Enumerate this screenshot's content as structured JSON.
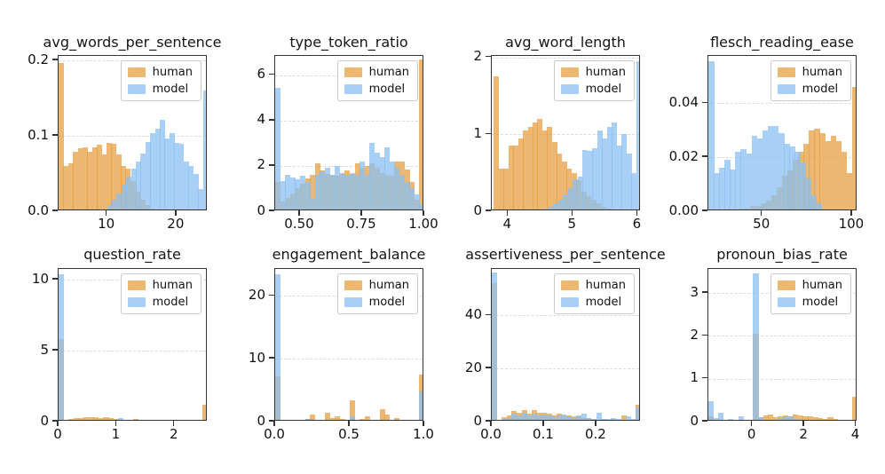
{
  "legend": {
    "human_label": "human",
    "model_label": "model"
  },
  "colors": {
    "human": "#e69f41",
    "model": "#8bbff1",
    "bar_alpha": 0.75,
    "human_rendered": "#ecb771",
    "model_rendered": "#a8cff5",
    "overlap_rendered": "#a3bdd1",
    "spine": "#333333",
    "grid": "#dcdcdc"
  },
  "chart_data": [
    {
      "type": "histogram",
      "title": "avg_words_per_sentence",
      "xlim": [
        3.0,
        24.5
      ],
      "ylim": [
        0,
        0.206
      ],
      "xticks": [
        10,
        20
      ],
      "xtick_labels": [
        "10",
        "20"
      ],
      "yticks": [
        0.0,
        0.1,
        0.2
      ],
      "ytick_labels": [
        "0.0",
        "0.1",
        "0.2"
      ],
      "grid": "horizontal-dashed",
      "legend_position": "upper-right",
      "series": [
        {
          "name": "human",
          "bin_start": 3.0,
          "bin_width": 0.69,
          "heights": [
            0.196,
            0.06,
            0.064,
            0.079,
            0.083,
            0.085,
            0.079,
            0.085,
            0.088,
            0.075,
            0.091,
            0.09,
            0.075,
            0.06,
            0.057,
            0.04,
            0.026,
            0.015,
            0.008,
            0.004
          ]
        },
        {
          "name": "model",
          "bin_start": 10.0,
          "bin_width": 0.69,
          "heights": [
            0.008,
            0.015,
            0.024,
            0.035,
            0.046,
            0.056,
            0.066,
            0.077,
            0.092,
            0.104,
            0.11,
            0.121,
            0.096,
            0.104,
            0.091,
            0.089,
            0.066,
            0.06,
            0.049,
            0.03,
            0.16
          ]
        }
      ]
    },
    {
      "type": "histogram",
      "title": "type_token_ratio",
      "xlim": [
        0.4,
        1.0
      ],
      "ylim": [
        0,
        6.85
      ],
      "xticks": [
        0.5,
        0.75,
        1.0
      ],
      "xtick_labels": [
        "0.50",
        "0.75",
        "1.00"
      ],
      "yticks": [
        0,
        2,
        4,
        6
      ],
      "ytick_labels": [
        "0",
        "2",
        "4",
        "6"
      ],
      "grid": "horizontal-dashed",
      "legend_position": "upper-right",
      "series": [
        {
          "name": "human",
          "bin_start": 0.4,
          "bin_width": 0.02,
          "heights": [
            1.3,
            0.45,
            0.6,
            0.8,
            1.0,
            1.2,
            1.45,
            1.6,
            2.1,
            1.8,
            1.65,
            1.6,
            1.55,
            1.7,
            1.8,
            1.65,
            2.1,
            1.9,
            2.0,
            2.1,
            1.9,
            1.7,
            1.6,
            1.55,
            2.2,
            2.2,
            1.85,
            1.3,
            0.5,
            6.7
          ]
        },
        {
          "name": "model",
          "bin_start": 0.4,
          "bin_width": 0.02,
          "heights": [
            5.45,
            1.35,
            1.6,
            1.5,
            1.4,
            1.55,
            1.3,
            0.55,
            1.6,
            1.75,
            1.9,
            1.6,
            2.0,
            1.65,
            1.6,
            1.7,
            1.6,
            2.2,
            1.6,
            3.0,
            2.6,
            2.4,
            2.8,
            2.2,
            1.9,
            1.6,
            1.3,
            1.0,
            0.75,
            0.3
          ]
        }
      ]
    },
    {
      "type": "histogram",
      "title": "avg_word_length",
      "xlim": [
        3.75,
        6.05
      ],
      "ylim": [
        0,
        2.02
      ],
      "xticks": [
        4,
        5,
        6
      ],
      "xtick_labels": [
        "4",
        "5",
        "6"
      ],
      "yticks": [
        0,
        1,
        2
      ],
      "ytick_labels": [
        "0",
        "1",
        "2"
      ],
      "grid": "horizontal-dashed",
      "legend_position": "upper-right",
      "series": [
        {
          "name": "human",
          "bin_start": 3.78,
          "bin_width": 0.075,
          "heights": [
            1.75,
            0.55,
            0.55,
            0.85,
            0.85,
            0.95,
            1.05,
            1.1,
            1.15,
            1.2,
            1.05,
            1.1,
            0.9,
            0.75,
            0.65,
            0.55,
            0.5,
            0.4,
            0.25,
            0.2,
            0.15,
            0.1,
            0.06,
            0.04,
            0.02
          ]
        },
        {
          "name": "model",
          "bin_start": 4.55,
          "bin_width": 0.075,
          "heights": [
            0.03,
            0.06,
            0.1,
            0.15,
            0.22,
            0.3,
            0.42,
            0.45,
            0.8,
            0.78,
            0.82,
            1.05,
            0.95,
            1.1,
            1.15,
            0.85,
            1.0,
            0.75,
            0.5,
            1.95
          ]
        }
      ]
    },
    {
      "type": "histogram",
      "title": "flesch_reading_ease",
      "xlim": [
        20,
        103
      ],
      "ylim": [
        0,
        0.0575
      ],
      "xticks": [
        50,
        100
      ],
      "xtick_labels": [
        "50",
        "100"
      ],
      "yticks": [
        0.0,
        0.02,
        0.04
      ],
      "ytick_labels": [
        "0.00",
        "0.02",
        "0.04"
      ],
      "grid": "horizontal-dashed",
      "legend_position": "upper-right",
      "series": [
        {
          "name": "human",
          "bin_start": 37,
          "bin_width": 3,
          "heights": [
            0.001,
            0.001,
            0.002,
            0.002,
            0.003,
            0.004,
            0.006,
            0.009,
            0.013,
            0.015,
            0.019,
            0.022,
            0.025,
            0.03,
            0.0305,
            0.029,
            0.026,
            0.028,
            0.026,
            0.022,
            0.014,
            0.046
          ]
        },
        {
          "name": "model",
          "bin_start": 20,
          "bin_width": 3,
          "heights": [
            0.0555,
            0.014,
            0.016,
            0.019,
            0.0155,
            0.022,
            0.023,
            0.0215,
            0.028,
            0.027,
            0.03,
            0.0315,
            0.0315,
            0.029,
            0.025,
            0.024,
            0.022,
            0.018,
            0.012,
            0.006,
            0.003
          ]
        }
      ]
    },
    {
      "type": "histogram",
      "title": "question_rate",
      "xlim": [
        0,
        2.57
      ],
      "ylim": [
        0,
        10.75
      ],
      "xticks": [
        0,
        1,
        2
      ],
      "xtick_labels": [
        "0",
        "1",
        "2"
      ],
      "yticks": [
        0,
        5,
        10
      ],
      "ytick_labels": [
        "0",
        "5",
        "10"
      ],
      "grid": "horizontal-dashed",
      "legend_position": "upper-right",
      "series": [
        {
          "name": "human",
          "bin_start": 0,
          "bin_width": 0.0857,
          "heights": [
            5.8,
            0.1,
            0.2,
            0.22,
            0.28,
            0.3,
            0.33,
            0.3,
            0.28,
            0.3,
            0.25,
            0.2,
            0.15,
            0.12,
            0.15,
            0.17,
            0.15,
            0.1,
            0.05,
            0.08,
            0.1,
            0.08,
            0.05,
            0.05,
            0.04,
            0.03,
            0.03,
            0.02,
            0.02,
            1.2
          ]
        },
        {
          "name": "model",
          "bin_start": 0,
          "bin_width": 0.0857,
          "heights": [
            10.4,
            0.05,
            0.04,
            0.03,
            0.05,
            0.04,
            0.05,
            0.04,
            0.03,
            0.04,
            0.03,
            0.04,
            0.25,
            0.08,
            0.05,
            0.04,
            0.03,
            0.03,
            0.02,
            0.03,
            0.02,
            0.02,
            0.02,
            0.02,
            0.02,
            0.02,
            0.08,
            0.02,
            0.02,
            0.05
          ]
        }
      ]
    },
    {
      "type": "histogram",
      "title": "engagement_balance",
      "xlim": [
        0,
        1.0
      ],
      "ylim": [
        0,
        24.3
      ],
      "xticks": [
        0.0,
        0.5,
        1.0
      ],
      "xtick_labels": [
        "0.0",
        "0.5",
        "1.0"
      ],
      "yticks": [
        0,
        10,
        20
      ],
      "ytick_labels": [
        "0",
        "10",
        "20"
      ],
      "grid": "horizontal-dashed",
      "legend_position": "upper-right",
      "series": [
        {
          "name": "human",
          "bin_start": 0,
          "bin_width": 0.03333,
          "heights": [
            7.2,
            0,
            0,
            0.1,
            0.15,
            0.3,
            0.4,
            1.1,
            0.3,
            0.2,
            1.35,
            0.5,
            0.85,
            0.45,
            0.1,
            3.4,
            0.2,
            0.45,
            0.9,
            0.3,
            0.25,
            2.0,
            1.1,
            0.3,
            0.6,
            0.35,
            0.2,
            0.1,
            0.05,
            7.5
          ]
        },
        {
          "name": "model",
          "bin_start": 0,
          "bin_width": 0.03333,
          "heights": [
            23.5,
            0,
            0,
            0,
            0,
            0,
            0.45,
            0.1,
            0,
            0,
            0.05,
            0,
            0.05,
            0,
            0,
            0.8,
            0,
            0,
            0.05,
            0,
            0,
            0.05,
            0,
            0,
            0,
            0,
            0,
            0,
            0,
            4.8
          ]
        }
      ]
    },
    {
      "type": "histogram",
      "title": "assertiveness_per_sentence",
      "xlim": [
        0,
        0.285
      ],
      "ylim": [
        0,
        57.5
      ],
      "xticks": [
        0.0,
        0.1,
        0.2
      ],
      "xtick_labels": [
        "0.0",
        "0.1",
        "0.2"
      ],
      "yticks": [
        0,
        20,
        40
      ],
      "ytick_labels": [
        "0",
        "20",
        "40"
      ],
      "grid": "horizontal-dashed",
      "legend_position": "upper-right",
      "series": [
        {
          "name": "human",
          "bin_start": 0,
          "bin_width": 0.0095,
          "heights": [
            52,
            0.5,
            1.8,
            2.2,
            4.0,
            3.5,
            4.2,
            3.0,
            4.2,
            3.2,
            3.5,
            3.0,
            2.5,
            3.0,
            2.5,
            2.2,
            2.0,
            2.0,
            1.5,
            1.5,
            1.0,
            0.8,
            1.0,
            0.8,
            1.0,
            0.8,
            2.2,
            0.8,
            0.5,
            6.2
          ]
        },
        {
          "name": "model",
          "bin_start": 0,
          "bin_width": 0.0095,
          "heights": [
            56,
            0.3,
            1.0,
            1.5,
            3.0,
            2.5,
            3.5,
            2.5,
            3.0,
            2.5,
            2.8,
            2.5,
            2.0,
            2.8,
            2.8,
            2.0,
            1.5,
            2.5,
            3.0,
            1.5,
            1.0,
            3.2,
            1.0,
            1.0,
            1.2,
            1.0,
            0.8,
            2.0,
            1.0,
            5.5
          ]
        }
      ]
    },
    {
      "type": "histogram",
      "title": "pronoun_bias_rate",
      "xlim": [
        -1.7,
        4.05
      ],
      "ylim": [
        0,
        3.56
      ],
      "xticks": [
        0,
        2,
        4
      ],
      "xtick_labels": [
        "0",
        "2",
        "4"
      ],
      "yticks": [
        0,
        1,
        2,
        3
      ],
      "ytick_labels": [
        "0",
        "1",
        "2",
        "3"
      ],
      "grid": "horizontal-dashed",
      "legend_position": "upper-right",
      "series": [
        {
          "name": "human",
          "bin_start": -1.7,
          "bin_width": 0.1917,
          "heights": [
            0.12,
            0,
            0,
            0,
            0,
            0,
            0,
            0.02,
            0.03,
            2.05,
            0.1,
            0.15,
            0.17,
            0.1,
            0.13,
            0.14,
            0.12,
            0.17,
            0.15,
            0.13,
            0.12,
            0.1,
            0.08,
            0.07,
            0.1,
            0.07,
            0.05,
            0.05,
            0.04,
            0.57
          ]
        },
        {
          "name": "model",
          "bin_start": -1.7,
          "bin_width": 0.1917,
          "heights": [
            0.48,
            0.08,
            0.2,
            0.02,
            0.06,
            0.04,
            0.12,
            0.03,
            0.02,
            3.45,
            0.1,
            0.05,
            0.05,
            0.04,
            0.08,
            0.12,
            0.12,
            0.06,
            0.05,
            0.04,
            0.03,
            0.03,
            0.02,
            0.02,
            0.02,
            0.02,
            0.02,
            0.01,
            0.01,
            0.01
          ]
        }
      ]
    }
  ]
}
